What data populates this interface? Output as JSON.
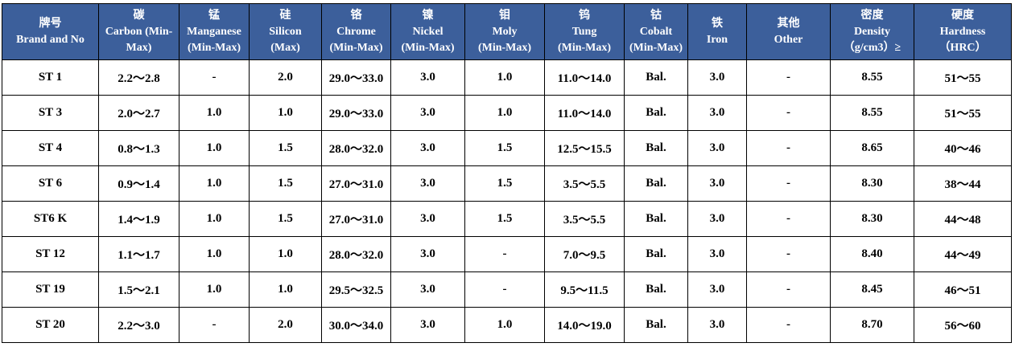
{
  "table": {
    "headers": [
      {
        "lines": [
          "牌号",
          "Brand and No"
        ]
      },
      {
        "lines": [
          "碳",
          "Carbon (Min-",
          "Max)"
        ]
      },
      {
        "lines": [
          "锰",
          "Manganese",
          "(Min-Max)"
        ]
      },
      {
        "lines": [
          "硅",
          "Silicon",
          "(Max)"
        ]
      },
      {
        "lines": [
          "铬",
          "Chrome",
          "(Min-Max)"
        ]
      },
      {
        "lines": [
          "镍",
          "Nickel",
          "(Min-Max)"
        ]
      },
      {
        "lines": [
          "钼",
          "Moly",
          "(Min-Max)"
        ]
      },
      {
        "lines": [
          "钨",
          "Tung",
          "(Min-Max)"
        ]
      },
      {
        "lines": [
          "钴",
          "Cobalt",
          "(Min-Max)"
        ]
      },
      {
        "lines": [
          "铁",
          "Iron"
        ]
      },
      {
        "lines": [
          "其他",
          "Other"
        ]
      },
      {
        "lines": [
          "密度",
          "Density",
          "（g/cm3）≥"
        ]
      },
      {
        "lines": [
          "硬度",
          "Hardness",
          "（HRC）"
        ]
      }
    ],
    "rows": [
      [
        "ST 1",
        "2.2～2.8",
        "-",
        "2.0",
        "29.0～33.0",
        "3.0",
        "1.0",
        "11.0～14.0",
        "Bal.",
        "3.0",
        "-",
        "8.55",
        "51～55"
      ],
      [
        "ST 3",
        "2.0～2.7",
        "1.0",
        "1.0",
        "29.0～33.0",
        "3.0",
        "1.0",
        "11.0～14.0",
        "Bal.",
        "3.0",
        "-",
        "8.55",
        "51～55"
      ],
      [
        "ST 4",
        "0.8～1.3",
        "1.0",
        "1.5",
        "28.0～32.0",
        "3.0",
        "1.5",
        "12.5～15.5",
        "Bal.",
        "3.0",
        "-",
        "8.65",
        "40～46"
      ],
      [
        "ST 6",
        "0.9～1.4",
        "1.0",
        "1.5",
        "27.0～31.0",
        "3.0",
        "1.5",
        "3.5～5.5",
        "Bal.",
        "3.0",
        "-",
        "8.30",
        "38～44"
      ],
      [
        "ST6 K",
        "1.4～1.9",
        "1.0",
        "1.5",
        "27.0～31.0",
        "3.0",
        "1.5",
        "3.5～5.5",
        "Bal.",
        "3.0",
        "-",
        "8.30",
        "44～48"
      ],
      [
        "ST 12",
        "1.1～1.7",
        "1.0",
        "1.0",
        "28.0～32.0",
        "3.0",
        "-",
        "7.0～9.5",
        "Bal.",
        "3.0",
        "-",
        "8.40",
        "44～49"
      ],
      [
        "ST 19",
        "1.5～2.1",
        "1.0",
        "1.0",
        "29.5～32.5",
        "3.0",
        "-",
        "9.5～11.5",
        "Bal.",
        "3.0",
        "-",
        "8.45",
        "46～51"
      ],
      [
        "ST 20",
        "2.2～3.0",
        "-",
        "2.0",
        "30.0～34.0",
        "3.0",
        "1.0",
        "14.0～19.0",
        "Bal.",
        "3.0",
        "-",
        "8.70",
        "56～60"
      ]
    ]
  },
  "colors": {
    "header_bg": "#3c5f9b",
    "header_text": "#ffffff",
    "border": "#000000"
  }
}
